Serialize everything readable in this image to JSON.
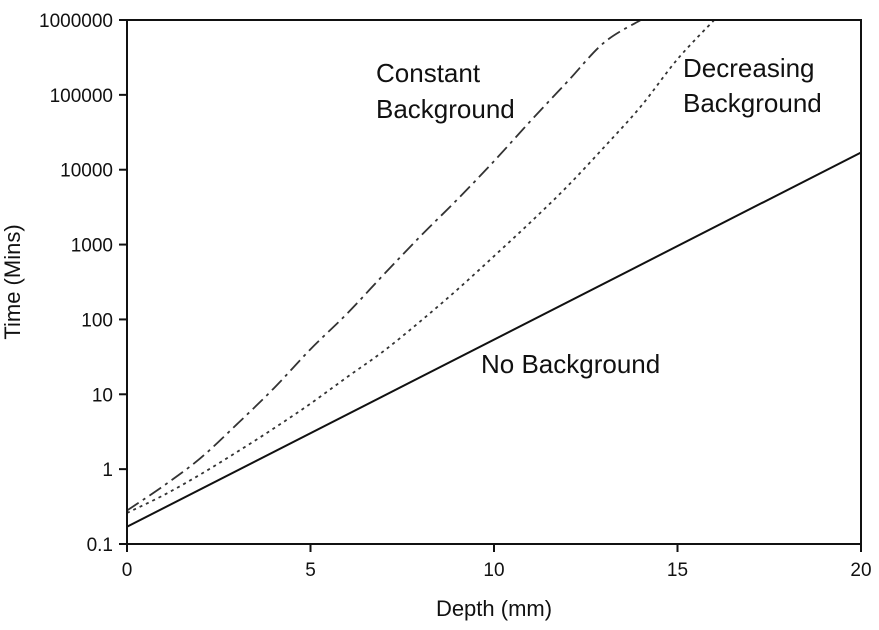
{
  "chart_data": {
    "type": "line",
    "title": "",
    "xlabel": "Depth (mm)",
    "ylabel": "Time (Mins)",
    "xlim": [
      0,
      20
    ],
    "ylim": [
      0.1,
      1000000
    ],
    "yscale": "log",
    "grid": false,
    "legend": "none",
    "x_ticks": [
      0,
      5,
      10,
      15,
      20
    ],
    "x_tick_labels": [
      "0",
      "5",
      "10",
      "15",
      "20"
    ],
    "y_ticks": [
      0.1,
      1,
      10,
      100,
      1000,
      10000,
      100000,
      1000000
    ],
    "y_tick_labels": [
      "0.1",
      "1",
      "10",
      "100",
      "1000",
      "10000",
      "100000",
      "1000000"
    ],
    "series": [
      {
        "label_lines": [
          "Constant",
          "Background"
        ],
        "style": "dash-dot",
        "color": "#333333",
        "x": [
          0,
          1,
          2,
          3,
          4,
          5,
          6,
          7,
          8,
          9,
          10,
          11,
          12,
          13,
          14
        ],
        "y": [
          0.28,
          0.6,
          1.4,
          4,
          12,
          40,
          120,
          400,
          1300,
          4000,
          13000,
          45000,
          150000,
          500000,
          1000000
        ]
      },
      {
        "label_lines": [
          "Decreasing",
          "Background"
        ],
        "style": "dotted",
        "color": "#333333",
        "x": [
          0,
          1,
          2,
          3,
          4,
          5,
          6,
          7,
          8,
          9,
          10,
          11,
          12,
          13,
          14,
          15,
          16
        ],
        "y": [
          0.26,
          0.45,
          0.85,
          1.7,
          3.5,
          7.5,
          17,
          38,
          95,
          250,
          700,
          2000,
          6000,
          20000,
          70000,
          300000,
          1000000
        ]
      },
      {
        "label_lines": [
          "No Background"
        ],
        "style": "solid",
        "color": "#111111",
        "x": [
          0,
          20
        ],
        "y": [
          0.17,
          17000
        ]
      }
    ]
  }
}
